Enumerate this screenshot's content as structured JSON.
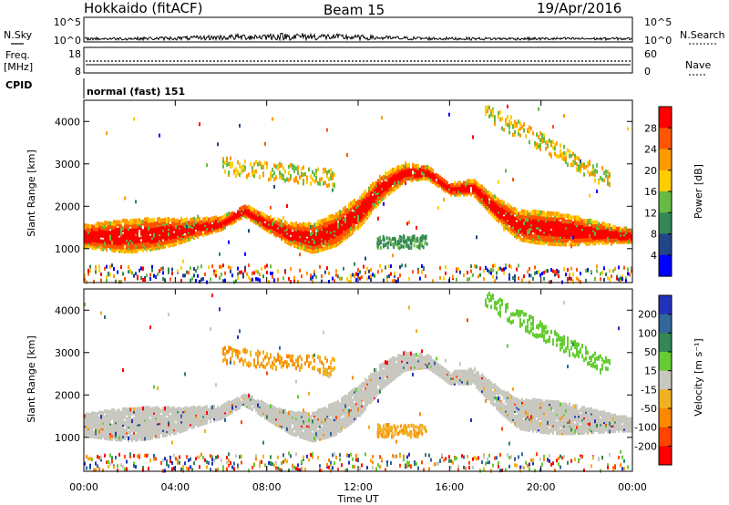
{
  "header": {
    "radar": "Hokkaido (fitACF)",
    "beam": "Beam 15",
    "date": "19/Apr/2016"
  },
  "noise_panel": {
    "left_label": "N.Sky",
    "right_label": "N.Search",
    "ticks_left": [
      "10^5",
      "10^0"
    ],
    "ticks_right": [
      "10^5",
      "10^0"
    ]
  },
  "freq_panel": {
    "label_line1": "Freq.",
    "label_line2": "[MHz]",
    "ticks_left": [
      "18",
      "8"
    ],
    "ticks_right": [
      "60",
      "0"
    ],
    "right_label": "Nave"
  },
  "cpid": {
    "label": "CPID",
    "mode": "normal (fast) 151"
  },
  "chart_data": [
    {
      "type": "heatmap",
      "name": "power",
      "ylabel": "Slant Range [km]",
      "y_ticks": [
        "4000",
        "3000",
        "2000",
        "1000"
      ],
      "ylim": [
        200,
        4500
      ],
      "colorbar": {
        "label": "Power [dB]",
        "ticks": [
          "28",
          "24",
          "20",
          "16",
          "12",
          "8",
          "4"
        ],
        "colors": [
          "#ff0000",
          "#ff5500",
          "#ff9900",
          "#ffcc00",
          "#66bb44",
          "#338855",
          "#224488",
          "#0000ff"
        ]
      }
    },
    {
      "type": "heatmap",
      "name": "velocity",
      "ylabel": "Slant Range [km]",
      "y_ticks": [
        "4000",
        "3000",
        "2000",
        "1000"
      ],
      "ylim": [
        200,
        4500
      ],
      "colorbar": {
        "label": "Velocity [m s⁻¹]",
        "ticks": [
          "200",
          "100",
          "50",
          "15",
          "-15",
          "-50",
          "-100",
          "-200"
        ],
        "colors": [
          "#2233bb",
          "#336699",
          "#338855",
          "#66cc33",
          "#c8c8c0",
          "#f0b020",
          "#ff8800",
          "#ff4400",
          "#ff0000"
        ]
      }
    }
  ],
  "x_axis": {
    "ticks": [
      "00:00",
      "04:00",
      "08:00",
      "12:00",
      "16:00",
      "20:00",
      "00:00"
    ],
    "label": "Time UT"
  }
}
